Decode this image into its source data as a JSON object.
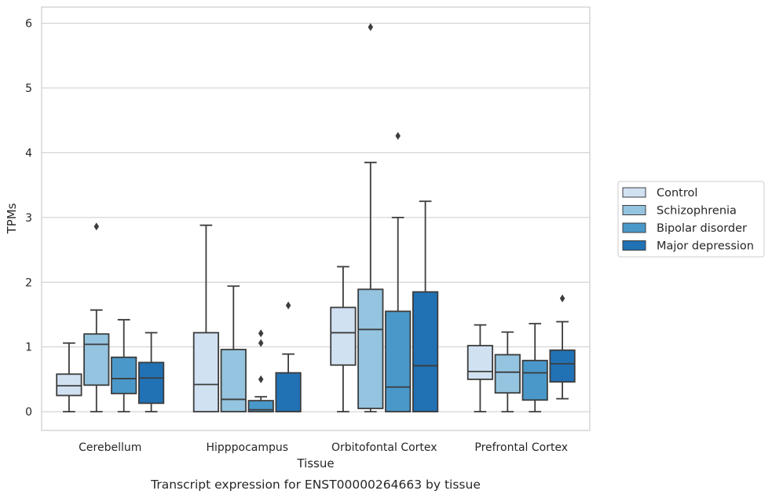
{
  "chart_data": {
    "type": "boxplot",
    "caption": "Transcript expression for ENST00000264663 by tissue",
    "xlabel": "Tissue",
    "ylabel": "TPMs",
    "ylim": [
      -0.29,
      6.25
    ],
    "yticks": [
      0,
      1,
      2,
      3,
      4,
      5,
      6
    ],
    "grid": true,
    "legend_position": "right",
    "categories": [
      "Cerebellum",
      "Hipppocampus",
      "Orbitofontal Cortex",
      "Prefrontal Cortex"
    ],
    "series": [
      {
        "name": "Control",
        "color": "#d0e1f2",
        "boxes": [
          {
            "whislo": 0.0,
            "q1": 0.25,
            "med": 0.4,
            "q3": 0.58,
            "whishi": 1.06,
            "fliers": []
          },
          {
            "whislo": 0.0,
            "q1": 0.0,
            "med": 0.42,
            "q3": 1.22,
            "whishi": 2.88,
            "fliers": []
          },
          {
            "whislo": 0.0,
            "q1": 0.72,
            "med": 1.22,
            "q3": 1.61,
            "whishi": 2.24,
            "fliers": []
          },
          {
            "whislo": 0.0,
            "q1": 0.5,
            "med": 0.62,
            "q3": 1.02,
            "whishi": 1.34,
            "fliers": []
          }
        ]
      },
      {
        "name": "Schizophrenia",
        "color": "#94c4df",
        "boxes": [
          {
            "whislo": 0.0,
            "q1": 0.41,
            "med": 1.04,
            "q3": 1.2,
            "whishi": 1.57,
            "fliers": [
              2.86
            ]
          },
          {
            "whislo": 0.0,
            "q1": 0.0,
            "med": 0.19,
            "q3": 0.96,
            "whishi": 1.94,
            "fliers": []
          },
          {
            "whislo": 0.0,
            "q1": 0.05,
            "med": 1.27,
            "q3": 1.89,
            "whishi": 3.85,
            "fliers": [
              5.94
            ]
          },
          {
            "whislo": 0.0,
            "q1": 0.29,
            "med": 0.61,
            "q3": 0.88,
            "whishi": 1.23,
            "fliers": []
          }
        ]
      },
      {
        "name": "Bipolar disorder",
        "color": "#4a98c9",
        "boxes": [
          {
            "whislo": 0.0,
            "q1": 0.28,
            "med": 0.51,
            "q3": 0.84,
            "whishi": 1.42,
            "fliers": []
          },
          {
            "whislo": 0.0,
            "q1": 0.0,
            "med": 0.03,
            "q3": 0.17,
            "whishi": 0.23,
            "fliers": [
              1.21,
              1.06,
              0.5
            ]
          },
          {
            "whislo": 0.0,
            "q1": 0.0,
            "med": 0.38,
            "q3": 1.55,
            "whishi": 3.0,
            "fliers": [
              4.26
            ]
          },
          {
            "whislo": 0.0,
            "q1": 0.18,
            "med": 0.6,
            "q3": 0.79,
            "whishi": 1.36,
            "fliers": []
          }
        ]
      },
      {
        "name": "Major depression",
        "color": "#2171b5",
        "boxes": [
          {
            "whislo": 0.0,
            "q1": 0.13,
            "med": 0.52,
            "q3": 0.76,
            "whishi": 1.22,
            "fliers": []
          },
          {
            "whislo": 0.0,
            "q1": 0.0,
            "med": 0.0,
            "q3": 0.6,
            "whishi": 0.89,
            "fliers": [
              1.64
            ]
          },
          {
            "whislo": 0.0,
            "q1": 0.0,
            "med": 0.71,
            "q3": 1.85,
            "whishi": 3.25,
            "fliers": []
          },
          {
            "whislo": 0.2,
            "q1": 0.46,
            "med": 0.74,
            "q3": 0.95,
            "whishi": 1.39,
            "fliers": [
              1.75
            ]
          }
        ]
      }
    ]
  }
}
